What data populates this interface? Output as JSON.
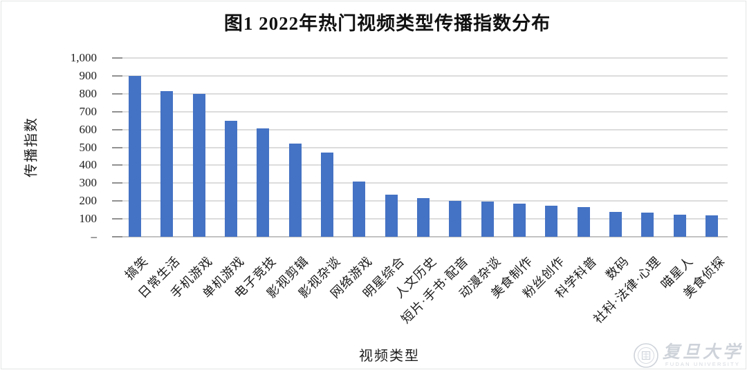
{
  "title": "图1 2022年热门视频类型传播指数分布",
  "watermark": {
    "cn": "复旦大学",
    "en": "FUDAN UNIVERSITY"
  },
  "chart_data": {
    "type": "bar",
    "title": "图1 2022年热门视频类型传播指数分布",
    "xlabel": "视频类型",
    "ylabel": "传播指数",
    "categories": [
      "搞笑",
      "日常生活",
      "手机游戏",
      "单机游戏",
      "电子竞技",
      "影视剪辑",
      "影视杂谈",
      "网络游戏",
      "明星综合",
      "人文历史",
      "短片·手书·配音",
      "动漫杂谈",
      "美食制作",
      "粉丝创作",
      "科学科普",
      "数码",
      "社科·法律·心理",
      "喵星人",
      "美食侦探"
    ],
    "values": [
      900,
      815,
      800,
      650,
      605,
      520,
      470,
      310,
      235,
      215,
      200,
      195,
      185,
      175,
      165,
      140,
      135,
      125,
      120
    ],
    "ylim": [
      0,
      1000
    ],
    "ytick_interval": 100,
    "ytick_labels": [
      "–",
      "100",
      "200",
      "300",
      "400",
      "500",
      "600",
      "700",
      "800",
      "900",
      "1,000"
    ],
    "grid": true,
    "legend": "none",
    "bar_color": "#4472C4",
    "gridline_color": "#dcdcdc"
  }
}
